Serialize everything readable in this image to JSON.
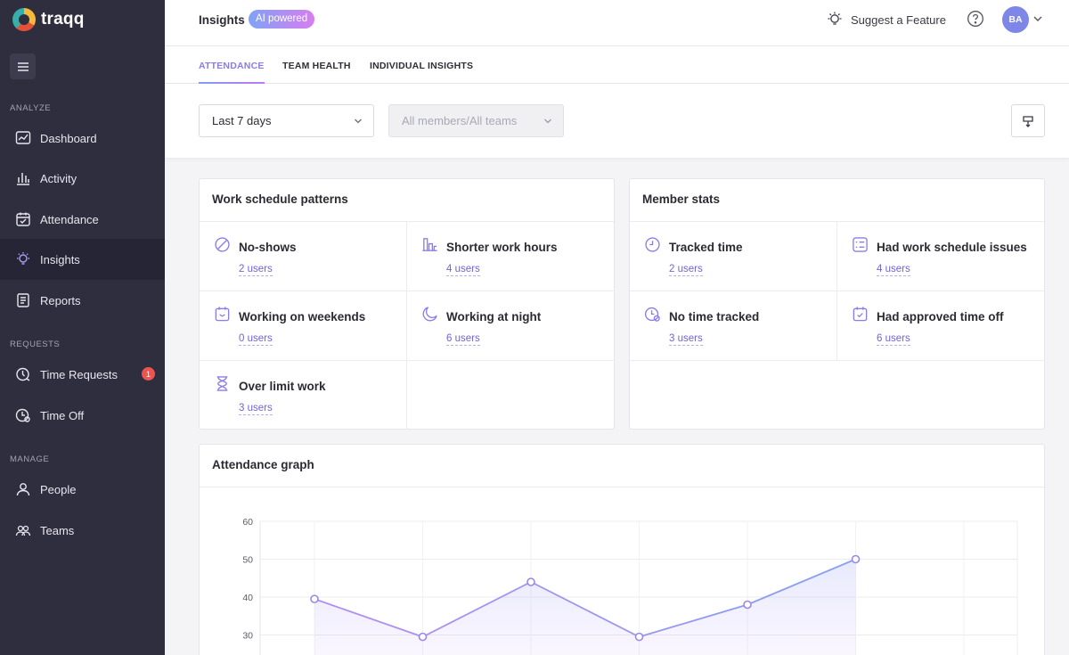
{
  "app": {
    "name": "traqq"
  },
  "sidebar": {
    "sections": {
      "analyze": "ANALYZE",
      "requests": "REQUESTS",
      "manage": "MANAGE"
    },
    "items": [
      {
        "label": "Dashboard",
        "icon": "dashboard-icon"
      },
      {
        "label": "Activity",
        "icon": "activity-icon"
      },
      {
        "label": "Attendance",
        "icon": "attendance-icon"
      },
      {
        "label": "Insights",
        "icon": "insights-icon",
        "active": true
      },
      {
        "label": "Reports",
        "icon": "reports-icon"
      },
      {
        "label": "Time Requests",
        "icon": "time-requests-icon",
        "badge": "1"
      },
      {
        "label": "Time Off",
        "icon": "time-off-icon"
      },
      {
        "label": "People",
        "icon": "people-icon"
      },
      {
        "label": "Teams",
        "icon": "teams-icon"
      }
    ]
  },
  "header": {
    "title": "Insights",
    "badge": "AI powered",
    "suggest": "Suggest a Feature",
    "avatar_initials": "BA"
  },
  "tabs": [
    {
      "label": "ATTENDANCE",
      "active": true
    },
    {
      "label": "TEAM HEALTH"
    },
    {
      "label": "INDIVIDUAL INSIGHTS"
    }
  ],
  "filters": {
    "period": "Last 7 days",
    "members": "All members/All teams"
  },
  "work_schedule": {
    "title": "Work schedule patterns",
    "items": [
      {
        "label": "No-shows",
        "users": "2 users",
        "icon": "no-show-icon"
      },
      {
        "label": "Shorter work hours",
        "users": "4 users",
        "icon": "short-hours-icon"
      },
      {
        "label": "Working on weekends",
        "users": "0 users",
        "icon": "calendar-weekend-icon"
      },
      {
        "label": "Working at night",
        "users": "6 users",
        "icon": "moon-icon"
      },
      {
        "label": "Over limit work",
        "users": "3 users",
        "icon": "hourglass-icon"
      }
    ]
  },
  "member_stats": {
    "title": "Member stats",
    "items": [
      {
        "label": "Tracked time",
        "users": "2 users",
        "icon": "clock-icon"
      },
      {
        "label": "Had work schedule issues",
        "users": "4 users",
        "icon": "schedule-issues-icon"
      },
      {
        "label": "No time tracked",
        "users": "3 users",
        "icon": "no-time-icon"
      },
      {
        "label": "Had approved time off",
        "users": "6 users",
        "icon": "calendar-check-icon"
      }
    ]
  },
  "attendance_graph": {
    "title": "Attendance graph"
  },
  "colors": {
    "accent": "#8a7de8",
    "sidebar_bg": "#2f2e3f",
    "badge_red": "#ef5350",
    "line": "#9a87ea"
  },
  "chart_data": {
    "type": "area",
    "title": "",
    "xlabel": "",
    "ylabel": "",
    "x": [
      1,
      2,
      3,
      4,
      5,
      6
    ],
    "values": [
      39.5,
      29.5,
      44,
      29.5,
      38,
      50
    ],
    "y_ticks": [
      60,
      50,
      40,
      30
    ],
    "ylim": [
      25,
      60
    ],
    "grid": true,
    "legend": "none"
  }
}
